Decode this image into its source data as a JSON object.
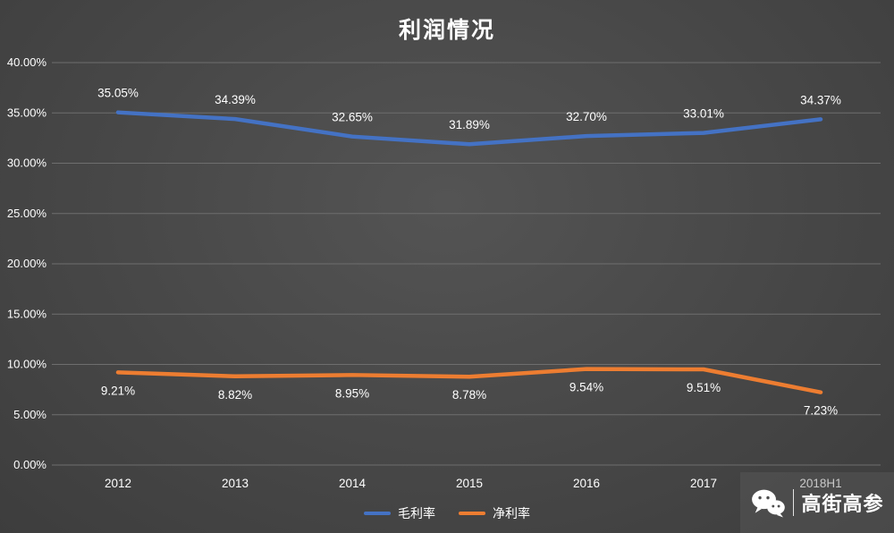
{
  "title": "利润情况",
  "watermark": {
    "icon": "wechat-icon",
    "text": "高街高参"
  },
  "legend": [
    {
      "label": "毛利率",
      "color": "#4472C4"
    },
    {
      "label": "净利率",
      "color": "#ED7D31"
    }
  ],
  "colors": {
    "text": "#ffffff",
    "gridline": "#6e6e6e",
    "series_blue": "#4472C4",
    "series_orange": "#ED7D31"
  },
  "chart_data": {
    "type": "line",
    "title": "利润情况",
    "categories": [
      "2012",
      "2013",
      "2014",
      "2015",
      "2016",
      "2017",
      "2018H1"
    ],
    "series": [
      {
        "name": "毛利率",
        "color": "#4472C4",
        "values": [
          35.05,
          34.39,
          32.65,
          31.89,
          32.7,
          33.01,
          34.37
        ],
        "labels": [
          "35.05%",
          "34.39%",
          "32.65%",
          "31.89%",
          "32.70%",
          "33.01%",
          "34.37%"
        ],
        "label_position": "above"
      },
      {
        "name": "净利率",
        "color": "#ED7D31",
        "values": [
          9.21,
          8.82,
          8.95,
          8.78,
          9.54,
          9.51,
          7.23
        ],
        "labels": [
          "9.21%",
          "8.82%",
          "8.95%",
          "8.78%",
          "9.54%",
          "9.51%",
          "7.23%"
        ],
        "label_position": "below"
      }
    ],
    "ylim": [
      0,
      40
    ],
    "ytick_step": 5,
    "yticks": [
      {
        "value": 0,
        "label": "0.00%"
      },
      {
        "value": 5,
        "label": "5.00%"
      },
      {
        "value": 10,
        "label": "10.00%"
      },
      {
        "value": 15,
        "label": "15.00%"
      },
      {
        "value": 20,
        "label": "20.00%"
      },
      {
        "value": 25,
        "label": "25.00%"
      },
      {
        "value": 30,
        "label": "30.00%"
      },
      {
        "value": 35,
        "label": "35.00%"
      },
      {
        "value": 40,
        "label": "40.00%"
      }
    ],
    "grid": true,
    "legend_position": "bottom"
  }
}
